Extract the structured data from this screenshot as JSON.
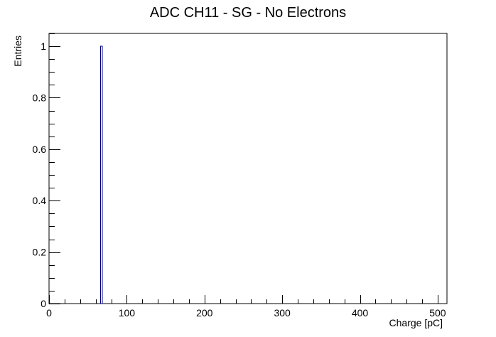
{
  "chart_data": {
    "type": "bar",
    "title": "ADC CH11 - SG - No Electrons",
    "xlabel": "Charge [pC]",
    "ylabel": "Entries",
    "xlim": [
      0,
      512
    ],
    "ylim": [
      0,
      1.05
    ],
    "x_major_ticks": [
      0,
      100,
      200,
      300,
      400,
      500
    ],
    "x_minor_step": 20,
    "y_major_ticks": [
      0,
      0.2,
      0.4,
      0.6,
      0.8,
      1
    ],
    "y_minor_step": 0.05,
    "tick_labels_x": [
      "0",
      "100",
      "200",
      "300",
      "400",
      "500"
    ],
    "tick_labels_y": [
      "0",
      "0.2",
      "0.4",
      "0.6",
      "0.8",
      "1"
    ],
    "grid": false,
    "legend": "none",
    "bins": [
      {
        "x_low": 66.5,
        "x_high": 68.5,
        "value": 1
      }
    ],
    "colors": {
      "frame": "#000000",
      "bar_outline": "#000080",
      "background": "#ffffff"
    }
  }
}
